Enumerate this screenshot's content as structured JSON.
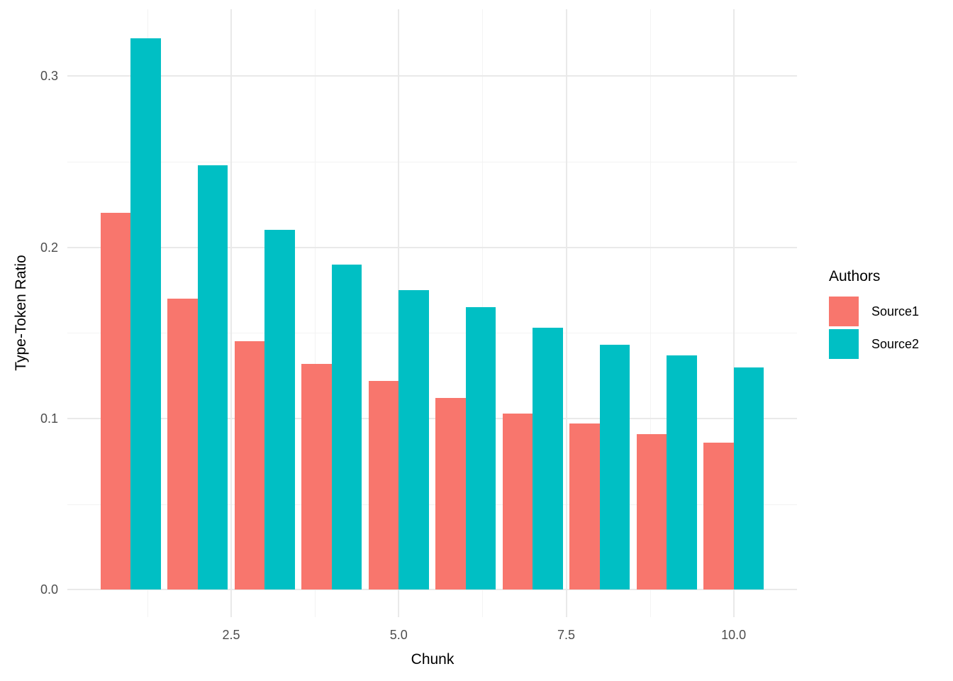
{
  "chart_data": {
    "type": "bar",
    "bar_mode": "dodge",
    "title": "",
    "xlabel": "Chunk",
    "ylabel": "Type-Token Ratio",
    "categories": [
      1,
      2,
      3,
      4,
      5,
      6,
      7,
      8,
      9,
      10
    ],
    "series": [
      {
        "name": "Source1",
        "color": "#F8766D",
        "values": [
          0.22,
          0.17,
          0.145,
          0.132,
          0.122,
          0.112,
          0.103,
          0.097,
          0.091,
          0.086
        ]
      },
      {
        "name": "Source2",
        "color": "#00BFC4",
        "values": [
          0.322,
          0.248,
          0.21,
          0.19,
          0.175,
          0.165,
          0.153,
          0.143,
          0.137,
          0.13
        ]
      }
    ],
    "legend": {
      "title": "Authors",
      "position": "right"
    },
    "x_axis": {
      "title": "Chunk",
      "tick_labels": [
        "2.5",
        "5.0",
        "7.5",
        "10.0"
      ],
      "tick_values": [
        2.5,
        5.0,
        7.5,
        10.0
      ],
      "minor_values": [
        1.25,
        3.75,
        6.25,
        8.75
      ],
      "range": [
        0.055,
        10.945
      ]
    },
    "y_axis": {
      "title": "Type-Token Ratio",
      "tick_labels": [
        "0.0",
        "0.1",
        "0.2",
        "0.3"
      ],
      "tick_values": [
        0.0,
        0.1,
        0.2,
        0.3
      ],
      "minor_values": [
        0.05,
        0.15,
        0.25
      ],
      "range": [
        -0.016,
        0.339
      ]
    },
    "grid": true,
    "bar_width_data_units": 0.45
  },
  "colors": {
    "source1": "#F8766D",
    "source2": "#00BFC4",
    "grid_major": "#e9e9e9",
    "grid_minor": "#f3f3f3",
    "tick_text": "#4d4d4d",
    "title_text": "#000000",
    "background": "#ffffff"
  }
}
